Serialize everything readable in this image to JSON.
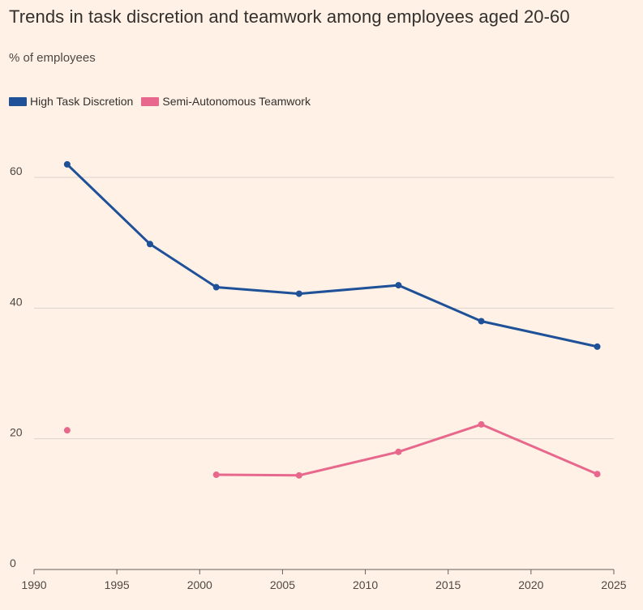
{
  "title": "Trends in task discretion and teamwork among employees aged 20-60",
  "subtitle": "% of employees",
  "colors": {
    "background": "#FFF1E5",
    "series1": "#1F5199",
    "series2": "#E8688D",
    "grid": "#DCD3CC"
  },
  "chart_data": {
    "type": "line",
    "title": "Trends in task discretion and teamwork among employees aged 20-60",
    "ylabel": "% of employees",
    "xlabel": "",
    "xlim": [
      1990,
      2025
    ],
    "ylim": [
      0,
      70
    ],
    "xticks": [
      1990,
      1995,
      2000,
      2005,
      2010,
      2015,
      2020,
      2025
    ],
    "yticks": [
      0,
      20,
      40,
      60
    ],
    "grid": true,
    "legend": "top-left",
    "series": [
      {
        "name": "High Task Discretion",
        "color": "#1F5199",
        "points": [
          [
            1992,
            62
          ],
          [
            1997,
            49.8
          ],
          [
            2001,
            43.2
          ],
          [
            2006,
            42.2
          ],
          [
            2012,
            43.5
          ],
          [
            2017,
            38
          ],
          [
            2024,
            34.1
          ]
        ]
      },
      {
        "name": "Semi-Autonomous Teamwork",
        "color": "#E8688D",
        "points": [
          [
            1992,
            21.3
          ],
          [
            2001,
            14.5
          ],
          [
            2006,
            14.4
          ],
          [
            2012,
            18
          ],
          [
            2017,
            22.2
          ],
          [
            2024,
            14.6
          ]
        ],
        "segments": [
          [
            0,
            0
          ],
          [
            1,
            5
          ]
        ]
      }
    ]
  }
}
